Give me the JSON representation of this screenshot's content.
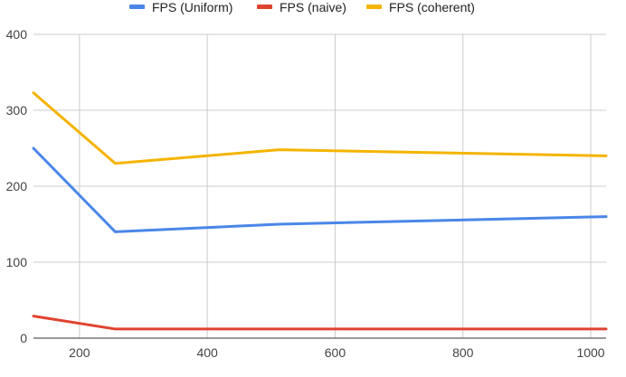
{
  "chart_data": {
    "type": "line",
    "title": "",
    "xlabel": "",
    "ylabel": "",
    "x": [
      128,
      256,
      512,
      1024
    ],
    "xlim": [
      128,
      1024
    ],
    "ylim": [
      0,
      400
    ],
    "xticks": [
      200,
      400,
      600,
      800,
      1000
    ],
    "yticks": [
      0,
      100,
      200,
      300,
      400
    ],
    "grid": true,
    "legend_position": "top",
    "series": [
      {
        "name": "FPS (Uniform)",
        "color": "#4a86e8",
        "values": [
          250,
          140,
          150,
          160
        ]
      },
      {
        "name": "FPS (naive)",
        "color": "#e0432f",
        "values": [
          29,
          12,
          12,
          12
        ]
      },
      {
        "name": "FPS (coherent)",
        "color": "#f4b400",
        "values": [
          323,
          230,
          248,
          240
        ]
      }
    ]
  }
}
